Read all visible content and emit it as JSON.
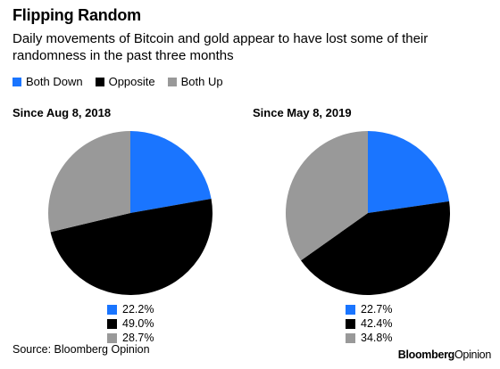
{
  "title": "Flipping Random",
  "subtitle": "Daily movements of Bitcoin and gold appear to have lost some of their randomness in the past three months",
  "colors": {
    "both_down": "#1a75ff",
    "opposite": "#000000",
    "both_up": "#999999"
  },
  "chart_data": {
    "type": "pie",
    "legend_position": "top-left",
    "legend": [
      "Both Down",
      "Opposite",
      "Both Up"
    ],
    "charts": [
      {
        "title": "Since Aug 8, 2018",
        "slices": [
          {
            "name": "Both Down",
            "value": 22.2,
            "label": "22.2%"
          },
          {
            "name": "Opposite",
            "value": 49.0,
            "label": "49.0%"
          },
          {
            "name": "Both Up",
            "value": 28.7,
            "label": "28.7%"
          }
        ]
      },
      {
        "title": "Since May 8, 2019",
        "slices": [
          {
            "name": "Both Down",
            "value": 22.7,
            "label": "22.7%"
          },
          {
            "name": "Opposite",
            "value": 42.4,
            "label": "42.4%"
          },
          {
            "name": "Both Up",
            "value": 34.8,
            "label": "34.8%"
          }
        ]
      }
    ]
  },
  "source": "Source: Bloomberg Opinion",
  "brand": {
    "part1": "Bloomberg",
    "part2": "Opinion"
  }
}
